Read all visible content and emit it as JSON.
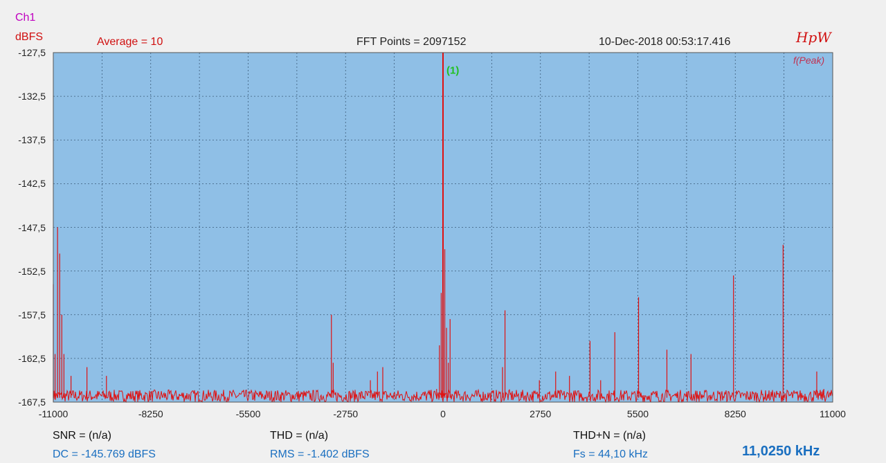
{
  "header": {
    "channel": "Ch1",
    "unit": "dBFS",
    "average": "Average = 10",
    "fft_points": "FFT Points = 2097152",
    "datetime": "10-Dec-2018 00:53:17.416",
    "logo": "HpW",
    "peak_label": "f(Peak)"
  },
  "footer": {
    "snr": "SNR = (n/a)",
    "thd": "THD = (n/a)",
    "thdn": "THD+N = (n/a)",
    "dc": "DC = -145.769 dBFS",
    "rms": "RMS = -1.402 dBFS",
    "fs": "Fs = 44,10 kHz",
    "sample_freq": "11,0250 kHz"
  },
  "colors": {
    "plot_bg": "#8fbfe6",
    "trace": "#e01010",
    "grid": "#3a5a78",
    "marker": "#20c020"
  },
  "chart_data": {
    "type": "line",
    "title": "",
    "xlabel": "",
    "ylabel": "dBFS",
    "xlim": [
      -11000,
      11000
    ],
    "ylim": [
      -167.5,
      -127.5
    ],
    "x_ticks": [
      "-11000",
      "-8250",
      "-5500",
      "-2750",
      "0",
      "2750",
      "5500",
      "8250",
      "11000"
    ],
    "y_ticks": [
      "-127,5",
      "-132,5",
      "-137,5",
      "-142,5",
      "-147,5",
      "-152,5",
      "-157,5",
      "-162,5",
      "-167,5"
    ],
    "noise_floor": -167,
    "markers": [
      {
        "label": "(1)",
        "x": 0,
        "y": -128
      }
    ],
    "series": [
      {
        "peaks": [
          {
            "x": -11000,
            "y": -154
          },
          {
            "x": -10950,
            "y": -162
          },
          {
            "x": -10880,
            "y": -147.5
          },
          {
            "x": -10820,
            "y": -150.5
          },
          {
            "x": -10760,
            "y": -157.5
          },
          {
            "x": -10700,
            "y": -162
          },
          {
            "x": -10500,
            "y": -164.5
          },
          {
            "x": -10050,
            "y": -163.5
          },
          {
            "x": -9500,
            "y": -164.5
          },
          {
            "x": -3150,
            "y": -157.5
          },
          {
            "x": -3100,
            "y": -163
          },
          {
            "x": -2050,
            "y": -165
          },
          {
            "x": -1850,
            "y": -164
          },
          {
            "x": -1700,
            "y": -163.5
          },
          {
            "x": -180,
            "y": -166
          },
          {
            "x": -100,
            "y": -161
          },
          {
            "x": -50,
            "y": -155
          },
          {
            "x": 0,
            "y": -127.5
          },
          {
            "x": 50,
            "y": -150
          },
          {
            "x": 100,
            "y": -159
          },
          {
            "x": 150,
            "y": -163
          },
          {
            "x": 200,
            "y": -158
          },
          {
            "x": 1680,
            "y": -163.5
          },
          {
            "x": 1750,
            "y": -157
          },
          {
            "x": 2720,
            "y": -165
          },
          {
            "x": 3180,
            "y": -164
          },
          {
            "x": 3570,
            "y": -164.5
          },
          {
            "x": 4150,
            "y": -160.5
          },
          {
            "x": 4450,
            "y": -165
          },
          {
            "x": 4850,
            "y": -159.5
          },
          {
            "x": 5520,
            "y": -155.5
          },
          {
            "x": 6320,
            "y": -161.5
          },
          {
            "x": 7000,
            "y": -162
          },
          {
            "x": 8200,
            "y": -153
          },
          {
            "x": 9600,
            "y": -149.5
          },
          {
            "x": 10550,
            "y": -164
          },
          {
            "x": 10750,
            "y": -166
          }
        ]
      }
    ]
  }
}
